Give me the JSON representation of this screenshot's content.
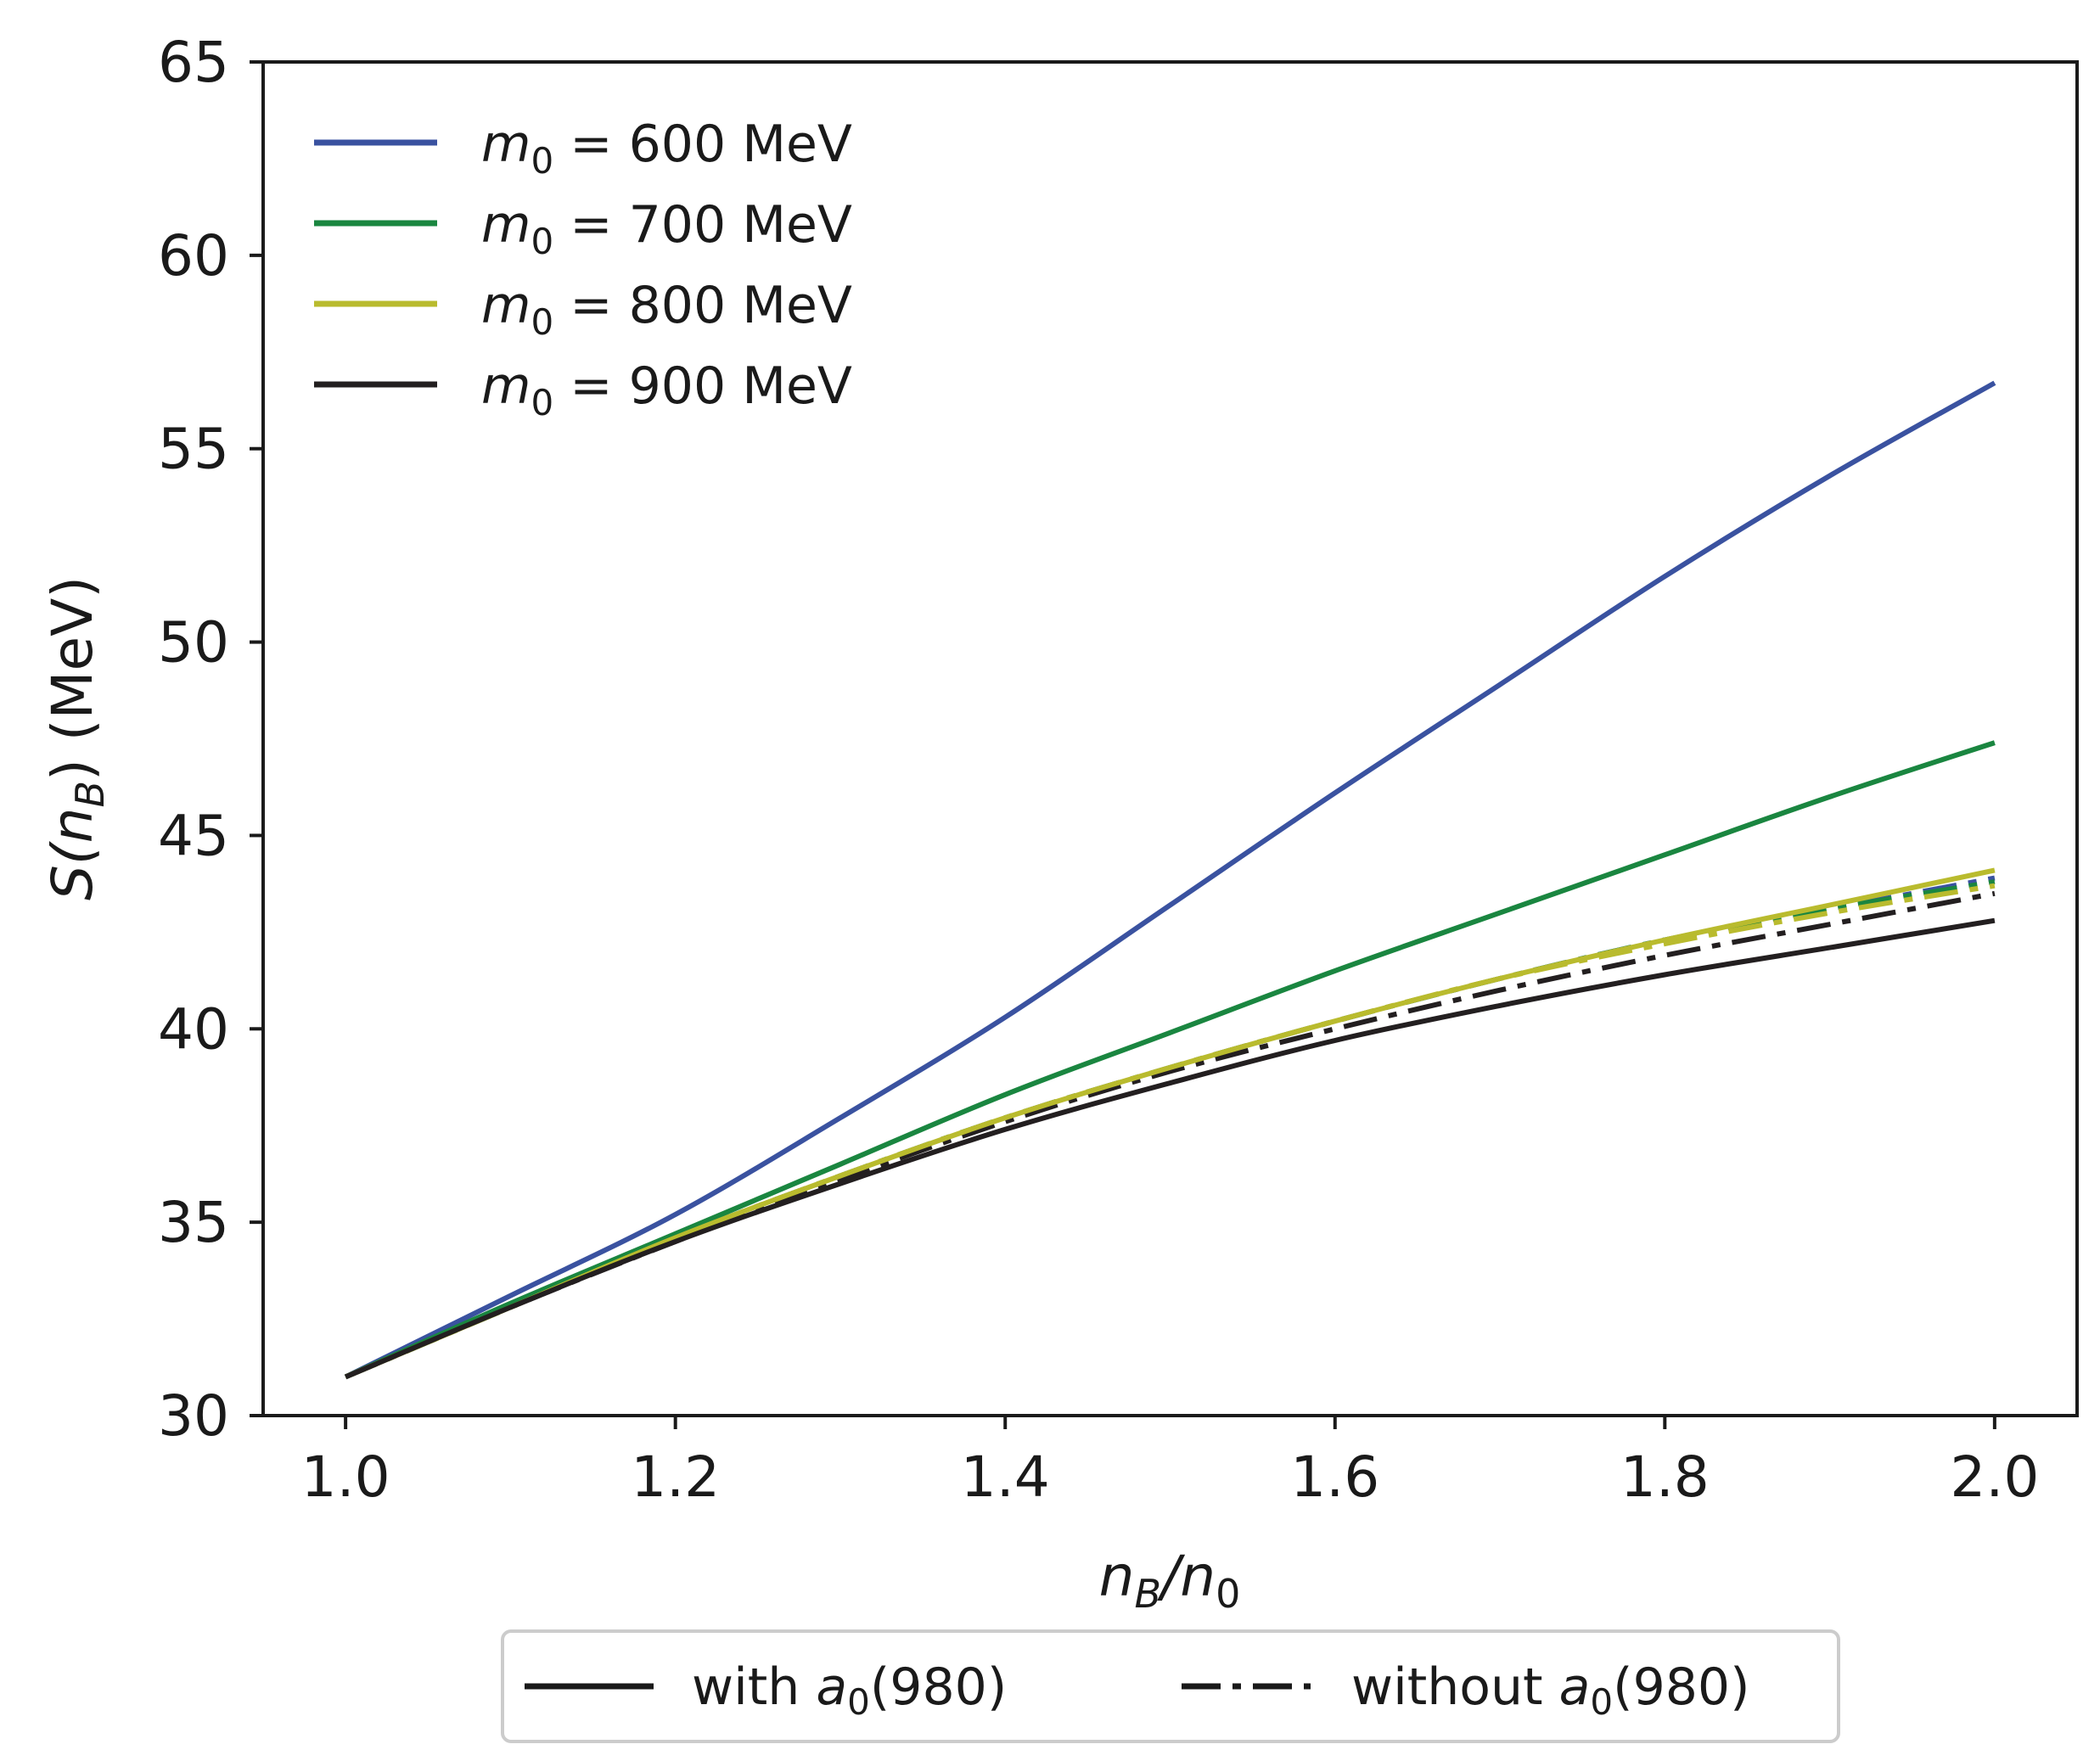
{
  "chart_data": {
    "type": "line",
    "xlabel": {
      "main": "n",
      "sub1": "B",
      "mid": "/n",
      "sub2": "0"
    },
    "ylabel": {
      "pre": "S(n",
      "sub": "B",
      "post": ") (MeV)"
    },
    "xlim": [
      0.95,
      2.05
    ],
    "ylim": [
      30,
      65
    ],
    "xticks": [
      1.0,
      1.2,
      1.4,
      1.6,
      1.8,
      2.0
    ],
    "xtick_labels": [
      "1.0",
      "1.2",
      "1.4",
      "1.6",
      "1.8",
      "2.0"
    ],
    "yticks": [
      30,
      35,
      40,
      45,
      50,
      55,
      60,
      65
    ],
    "ytick_labels": [
      "30",
      "35",
      "40",
      "45",
      "50",
      "55",
      "60",
      "65"
    ],
    "x": [
      1.0,
      1.1,
      1.2,
      1.3,
      1.4,
      1.5,
      1.6,
      1.7,
      1.8,
      1.9,
      2.0
    ],
    "series": [
      {
        "name": "m0 = 600 MeV",
        "legend_var": "m",
        "legend_sub": "0",
        "legend_text": " = 600 MeV",
        "color": "#3a52a0",
        "style": "solid",
        "values": [
          31.0,
          33.1,
          35.2,
          37.7,
          40.3,
          43.2,
          46.1,
          48.9,
          51.7,
          54.3,
          56.7
        ]
      },
      {
        "name": "m0 = 700 MeV",
        "legend_var": "m",
        "legend_sub": "0",
        "legend_text": " = 700 MeV",
        "color": "#1a8640",
        "style": "solid",
        "values": [
          31.0,
          32.9,
          34.7,
          36.5,
          38.3,
          39.9,
          41.5,
          43.0,
          44.5,
          46.0,
          47.4
        ]
      },
      {
        "name": "m0 = 800 MeV",
        "legend_var": "m",
        "legend_sub": "0",
        "legend_text": " = 800 MeV",
        "color": "#b9bb2e",
        "style": "solid",
        "values": [
          31.0,
          32.8,
          34.6,
          36.2,
          37.7,
          39.0,
          40.2,
          41.3,
          42.3,
          43.2,
          44.1
        ]
      },
      {
        "name": "m0 = 900 MeV",
        "legend_var": "m",
        "legend_sub": "0",
        "legend_text": " = 900 MeV",
        "color": "#231f20",
        "style": "solid",
        "values": [
          31.0,
          32.8,
          34.5,
          36.0,
          37.4,
          38.6,
          39.7,
          40.6,
          41.4,
          42.1,
          42.8
        ]
      },
      {
        "name": "m0 = 600 MeV (without a0)",
        "color": "#3a52a0",
        "style": "dashdot",
        "values": [
          31.0,
          32.8,
          34.6,
          36.2,
          37.7,
          39.0,
          40.2,
          41.3,
          42.3,
          43.1,
          43.9
        ]
      },
      {
        "name": "m0 = 700 MeV (without a0)",
        "color": "#1a8640",
        "style": "dashdot",
        "values": [
          31.0,
          32.8,
          34.6,
          36.2,
          37.7,
          39.0,
          40.2,
          41.3,
          42.3,
          43.1,
          43.8
        ]
      },
      {
        "name": "m0 = 800 MeV (without a0)",
        "color": "#b9bb2e",
        "style": "dashdot",
        "values": [
          31.0,
          32.8,
          34.6,
          36.2,
          37.7,
          39.0,
          40.2,
          41.3,
          42.2,
          43.0,
          43.7
        ]
      },
      {
        "name": "m0 = 900 MeV (without a0)",
        "color": "#231f20",
        "style": "dashdot",
        "values": [
          31.0,
          32.8,
          34.5,
          36.1,
          37.6,
          38.9,
          40.0,
          41.0,
          41.9,
          42.7,
          43.5
        ]
      }
    ],
    "legend_style": {
      "position": "below",
      "items": [
        {
          "label_pre": "with ",
          "label_var": "a",
          "label_sub": "0",
          "label_post": "(980)",
          "style": "solid"
        },
        {
          "label_pre": "without ",
          "label_var": "a",
          "label_sub": "0",
          "label_post": "(980)",
          "style": "dashdot"
        }
      ]
    },
    "legend_position": "top-left",
    "grid": false
  }
}
